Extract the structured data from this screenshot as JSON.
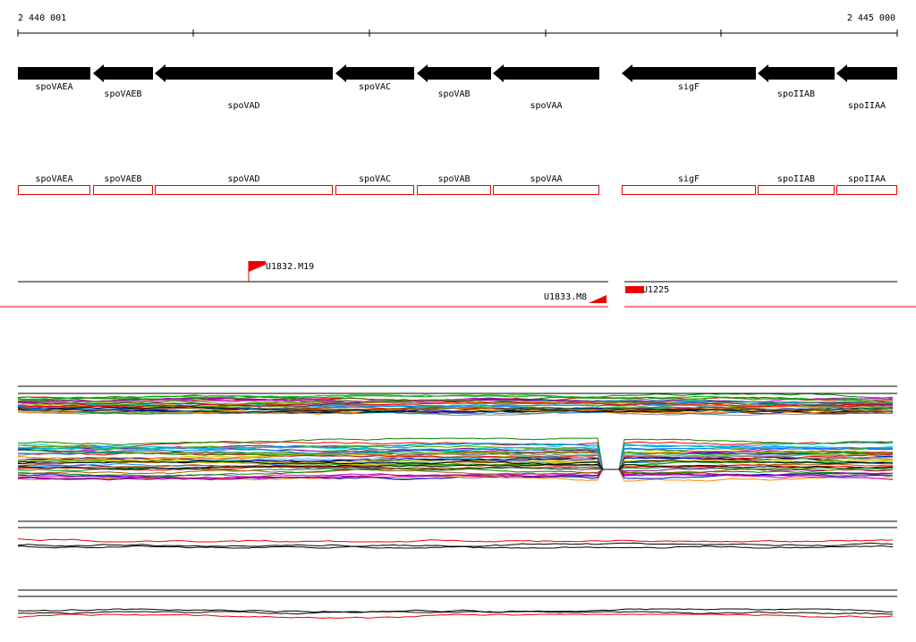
{
  "ruler": {
    "start": "2 440 001",
    "end": "2 445 000"
  },
  "genes": [
    "spoVAEA",
    "spoVAEB",
    "spoVAD",
    "spoVAC",
    "spoVAB",
    "spoVAA",
    "sigF",
    "spoIIAB",
    "spoIIAA"
  ],
  "boxes": [
    "spoVAEA",
    "spoVAEB",
    "spoVAD",
    "spoVAC",
    "spoVAB",
    "spoVAA",
    "sigF",
    "spoIIAB",
    "spoIIAA"
  ],
  "markers": [
    "U1832.M19",
    "U1833.M8",
    "U1225"
  ]
}
